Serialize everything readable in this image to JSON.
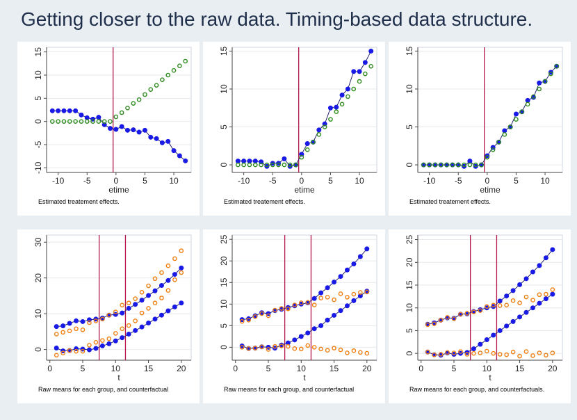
{
  "slide": {
    "title": "Getting closer to the raw data.  Timing-based data structure."
  },
  "colors": {
    "navy_series": "#1a1ae6",
    "green_series": "#2e8b1e",
    "orange_series": "#f07f10",
    "event_line": "#b2184a",
    "background": "#e8eef2"
  },
  "chart_data": [
    {
      "type": "scatter",
      "panel": "top-left",
      "xlabel": "etime",
      "ylabel": "",
      "caption": "Estimated treatement effects.",
      "xlim": [
        -12,
        13
      ],
      "ylim": [
        -11,
        16
      ],
      "xticks": [
        -10,
        -5,
        0,
        5,
        10
      ],
      "yticks": [
        -10,
        -5,
        0,
        5,
        10,
        15
      ],
      "vlines": [
        -0.5
      ],
      "series": [
        {
          "style": "line-filled",
          "color": "#1a1ae6",
          "x": [
            -11,
            -10,
            -9,
            -8,
            -7,
            -6,
            -5,
            -4,
            -3,
            -2,
            -1,
            0,
            1,
            2,
            3,
            4,
            5,
            6,
            7,
            8,
            9,
            10,
            11,
            12
          ],
          "y": [
            2.3,
            2.3,
            2.3,
            2.3,
            2.3,
            1.4,
            0.8,
            0.5,
            0.9,
            -0.7,
            -1.5,
            -1.7,
            -1.1,
            -1.9,
            -1.8,
            -2.3,
            -1.9,
            -3.4,
            -3.7,
            -4.6,
            -4.3,
            -6.3,
            -7.4,
            -8.5
          ]
        },
        {
          "style": "hollow",
          "color": "#2e8b1e",
          "x": [
            -11,
            -10,
            -9,
            -8,
            -7,
            -6,
            -5,
            -4,
            -3,
            -2,
            -1,
            0,
            1,
            2,
            3,
            4,
            5,
            6,
            7,
            8,
            9,
            10,
            11,
            12
          ],
          "y": [
            0,
            0,
            0,
            0,
            0,
            0,
            0,
            0,
            0,
            0,
            0,
            1.0,
            1.9,
            2.9,
            3.9,
            4.7,
            5.8,
            6.9,
            7.8,
            9.0,
            10.0,
            11.0,
            12.0,
            13.0
          ]
        }
      ]
    },
    {
      "type": "scatter",
      "panel": "top-middle",
      "xlabel": "etime",
      "ylabel": "",
      "caption": "Estimated treatement effects.",
      "xlim": [
        -12,
        13
      ],
      "ylim": [
        -1,
        15.5
      ],
      "xticks": [
        -10,
        -5,
        0,
        5,
        10
      ],
      "yticks": [
        0,
        5,
        10,
        15
      ],
      "vlines": [
        -0.5
      ],
      "series": [
        {
          "style": "line-filled",
          "color": "#1a1ae6",
          "x": [
            -11,
            -10,
            -9,
            -8,
            -7,
            -6,
            -5,
            -4,
            -3,
            -2,
            -1,
            0,
            1,
            2,
            3,
            4,
            5,
            6,
            7,
            8,
            9,
            10,
            11,
            12
          ],
          "y": [
            0.5,
            0.5,
            0.5,
            0.5,
            0.4,
            -0.2,
            0.2,
            0.2,
            0.8,
            -0.2,
            0,
            1.4,
            2.8,
            3.0,
            4.6,
            5.4,
            7.5,
            7.6,
            9.2,
            10.0,
            12.3,
            12.3,
            13.5,
            15.0
          ]
        },
        {
          "style": "hollow",
          "color": "#2e8b1e",
          "x": [
            -11,
            -10,
            -9,
            -8,
            -7,
            -6,
            -5,
            -4,
            -3,
            -2,
            -1,
            0,
            1,
            2,
            3,
            4,
            5,
            6,
            7,
            8,
            9,
            10,
            11,
            12
          ],
          "y": [
            0,
            0,
            0,
            0,
            0,
            0,
            0,
            0,
            0,
            0,
            0,
            1.0,
            2.0,
            3.0,
            4.0,
            5.0,
            6.0,
            7.0,
            8.0,
            9.0,
            10.0,
            11.0,
            12.0,
            13.0
          ]
        }
      ]
    },
    {
      "type": "scatter",
      "panel": "top-right",
      "xlabel": "etime",
      "ylabel": "",
      "caption": "Estimated treatement effects.",
      "xlim": [
        -12,
        13
      ],
      "ylim": [
        -1,
        15.5
      ],
      "xticks": [
        -10,
        -5,
        0,
        5,
        10
      ],
      "yticks": [
        0,
        5,
        10,
        15
      ],
      "vlines": [
        -0.5
      ],
      "series": [
        {
          "style": "line-filled",
          "color": "#1a1ae6",
          "x": [
            -11,
            -10,
            -9,
            -8,
            -7,
            -6,
            -5,
            -4,
            -3,
            -2,
            -1,
            0,
            1,
            2,
            3,
            4,
            5,
            6,
            7,
            8,
            9,
            10,
            11,
            12
          ],
          "y": [
            0,
            0,
            0,
            0,
            0,
            0,
            0,
            -0.2,
            0.5,
            -0.2,
            0,
            1.2,
            2.3,
            3.0,
            4.5,
            5.0,
            6.7,
            7.0,
            8.5,
            8.9,
            10.8,
            11.0,
            12.2,
            13.0
          ]
        },
        {
          "style": "hollow",
          "color": "#2e8b1e",
          "x": [
            -11,
            -10,
            -9,
            -8,
            -7,
            -6,
            -5,
            -4,
            -3,
            -2,
            -1,
            0,
            1,
            2,
            3,
            4,
            5,
            6,
            7,
            8,
            9,
            10,
            11,
            12
          ],
          "y": [
            0,
            0,
            0,
            0,
            0,
            0,
            0,
            0,
            0,
            0,
            0,
            1.0,
            2.0,
            3.0,
            4.0,
            5.0,
            6.0,
            7.0,
            8.0,
            9.0,
            10.0,
            11.0,
            12.0,
            13.0
          ]
        }
      ]
    },
    {
      "type": "scatter",
      "panel": "bottom-left",
      "xlabel": "t",
      "ylabel": "",
      "caption": "Raw means for each group, and counterfactual",
      "xlim": [
        -0.5,
        21.5
      ],
      "ylim": [
        -3,
        32
      ],
      "xticks": [
        0,
        5,
        10,
        15,
        20
      ],
      "yticks": [
        0,
        10,
        20,
        30
      ],
      "vlines": [
        7.5,
        11.5
      ],
      "series": [
        {
          "style": "line-filled",
          "color": "#1a1ae6",
          "x": [
            1,
            2,
            3,
            4,
            5,
            6,
            7,
            8,
            9,
            10,
            11,
            12,
            13,
            14,
            15,
            16,
            17,
            18,
            19,
            20
          ],
          "y": [
            6.4,
            6.6,
            7.3,
            8.0,
            7.8,
            8.3,
            8.5,
            8.8,
            9.6,
            9.8,
            10.2,
            11.5,
            12.6,
            13.8,
            15.1,
            16.4,
            17.9,
            19.3,
            21.0,
            22.8
          ]
        },
        {
          "style": "line-filled",
          "color": "#1a1ae6",
          "x": [
            1,
            2,
            3,
            4,
            5,
            6,
            7,
            8,
            9,
            10,
            11,
            12,
            13,
            14,
            15,
            16,
            17,
            18,
            19,
            20
          ],
          "y": [
            0.4,
            -0.4,
            -0.3,
            0.2,
            0.1,
            -0.1,
            0.3,
            1.0,
            1.6,
            2.4,
            3.3,
            4.3,
            5.3,
            6.3,
            7.4,
            8.5,
            9.6,
            10.8,
            11.9,
            13.0
          ]
        },
        {
          "style": "hollow",
          "color": "#f07f10",
          "x": [
            1,
            2,
            3,
            4,
            5,
            6,
            7,
            8,
            9,
            10,
            11,
            12,
            13,
            14,
            15,
            16,
            17,
            18,
            19,
            20
          ],
          "y": [
            4.3,
            4.8,
            5.2,
            5.8,
            5.5,
            7.5,
            8.0,
            8.5,
            9.6,
            10.5,
            12.4,
            13.0,
            14.2,
            16.0,
            17.8,
            19.8,
            21.5,
            23.4,
            25.4,
            27.6
          ]
        },
        {
          "style": "hollow",
          "color": "#f07f10",
          "x": [
            1,
            2,
            3,
            4,
            5,
            6,
            7,
            8,
            9,
            10,
            11,
            12,
            13,
            14,
            15,
            16,
            17,
            18,
            19,
            20
          ],
          "y": [
            -1.6,
            -1.0,
            -0.3,
            -0.5,
            -0.5,
            1.2,
            2.0,
            2.5,
            3.0,
            4.5,
            5.8,
            6.7,
            8.0,
            10.2,
            11.5,
            13.0,
            14.4,
            16.5,
            19.5,
            21.5
          ]
        }
      ]
    },
    {
      "type": "scatter",
      "panel": "bottom-middle",
      "xlabel": "t",
      "ylabel": "",
      "caption": "Raw means for each group, and counterfactual",
      "xlim": [
        -0.5,
        21.5
      ],
      "ylim": [
        -3,
        26
      ],
      "xticks": [
        0,
        5,
        10,
        15,
        20
      ],
      "yticks": [
        0,
        5,
        10,
        15,
        20,
        25
      ],
      "vlines": [
        7.5,
        11.5
      ],
      "series": [
        {
          "style": "line-filled",
          "color": "#1a1ae6",
          "x": [
            1,
            2,
            3,
            4,
            5,
            6,
            7,
            8,
            9,
            10,
            11,
            12,
            13,
            14,
            15,
            16,
            17,
            18,
            19,
            20
          ],
          "y": [
            6.4,
            6.6,
            7.3,
            8.0,
            7.8,
            8.5,
            8.8,
            9.2,
            9.6,
            10.0,
            10.3,
            11.3,
            12.6,
            13.8,
            15.1,
            16.4,
            17.9,
            19.3,
            21.0,
            22.8
          ]
        },
        {
          "style": "line-filled",
          "color": "#1a1ae6",
          "x": [
            1,
            2,
            3,
            4,
            5,
            6,
            7,
            8,
            9,
            10,
            11,
            12,
            13,
            14,
            15,
            16,
            17,
            18,
            19,
            20
          ],
          "y": [
            0.3,
            -0.3,
            -0.2,
            0.1,
            0.0,
            -0.2,
            0.5,
            1.0,
            1.7,
            2.5,
            3.3,
            4.3,
            5.0,
            6.3,
            7.4,
            8.5,
            9.6,
            10.8,
            11.9,
            13.0
          ]
        },
        {
          "style": "hollow",
          "color": "#f07f10",
          "x": [
            1,
            2,
            3,
            4,
            5,
            6,
            7,
            8,
            9,
            10,
            11,
            12,
            13,
            14,
            15,
            16,
            17,
            18,
            19,
            20
          ],
          "y": [
            6.0,
            6.3,
            7.1,
            7.8,
            7.3,
            8.6,
            9.0,
            8.9,
            9.8,
            10.3,
            10.4,
            9.8,
            11.4,
            11.6,
            11.0,
            12.4,
            11.6,
            12.3,
            12.7,
            12.8
          ]
        },
        {
          "style": "hollow",
          "color": "#f07f10",
          "x": [
            1,
            2,
            3,
            4,
            5,
            6,
            7,
            8,
            9,
            10,
            11,
            12,
            13,
            14,
            15,
            16,
            17,
            18,
            19,
            20
          ],
          "y": [
            0.0,
            -0.3,
            -0.2,
            0.1,
            -0.5,
            0.2,
            0.3,
            0.2,
            -0.3,
            -0.4,
            0.4,
            0.0,
            -0.4,
            -0.7,
            -0.2,
            -0.6,
            -1.3,
            -0.8,
            -1.2,
            -1.4
          ]
        }
      ]
    },
    {
      "type": "scatter",
      "panel": "bottom-right",
      "xlabel": "t",
      "ylabel": "",
      "caption": "Raw means for each group, and counterfactuals.",
      "xlim": [
        -0.5,
        21.5
      ],
      "ylim": [
        -1.5,
        26
      ],
      "xticks": [
        0,
        5,
        10,
        15,
        20
      ],
      "yticks": [
        0,
        5,
        10,
        15,
        20,
        25
      ],
      "vlines": [
        7.5,
        11.5
      ],
      "series": [
        {
          "style": "line-filled",
          "color": "#1a1ae6",
          "x": [
            1,
            2,
            3,
            4,
            5,
            6,
            7,
            8,
            9,
            10,
            11,
            12,
            13,
            14,
            15,
            16,
            17,
            18,
            19,
            20
          ],
          "y": [
            6.4,
            6.7,
            7.3,
            7.8,
            7.7,
            8.6,
            8.7,
            9.2,
            9.6,
            10.0,
            10.3,
            11.5,
            12.6,
            13.8,
            15.1,
            16.4,
            17.9,
            19.3,
            21.0,
            22.8
          ]
        },
        {
          "style": "line-filled",
          "color": "#1a1ae6",
          "x": [
            1,
            2,
            3,
            4,
            5,
            6,
            7,
            8,
            9,
            10,
            11,
            12,
            13,
            14,
            15,
            16,
            17,
            18,
            19,
            20
          ],
          "y": [
            0.3,
            -0.3,
            -0.4,
            0.1,
            -0.2,
            0.0,
            0.2,
            1.0,
            2.0,
            3.0,
            4.0,
            5.0,
            6.0,
            7.0,
            8.0,
            9.0,
            10.0,
            11.0,
            12.0,
            13.0
          ]
        },
        {
          "style": "hollow",
          "color": "#f07f10",
          "x": [
            1,
            2,
            3,
            4,
            5,
            6,
            7,
            8,
            9,
            10,
            11,
            12,
            13,
            14,
            15,
            16,
            17,
            18,
            19,
            20
          ],
          "y": [
            6.3,
            6.5,
            7.3,
            7.9,
            7.6,
            8.6,
            8.8,
            9.1,
            9.4,
            10.3,
            10.6,
            10.5,
            10.6,
            11.6,
            11.1,
            12.4,
            11.7,
            12.9,
            13.0,
            14.0
          ]
        },
        {
          "style": "hollow",
          "color": "#f07f10",
          "x": [
            1,
            2,
            3,
            4,
            5,
            6,
            7,
            8,
            9,
            10,
            11,
            12,
            13,
            14,
            15,
            16,
            17,
            18,
            19,
            20
          ],
          "y": [
            0.3,
            -0.3,
            -0.2,
            0.2,
            0.1,
            0.4,
            -0.2,
            0.0,
            0.1,
            0.5,
            0.0,
            -0.2,
            -0.3,
            0.3,
            -0.6,
            0.4,
            -0.5,
            0.1,
            -0.4,
            0.1
          ]
        }
      ]
    }
  ]
}
